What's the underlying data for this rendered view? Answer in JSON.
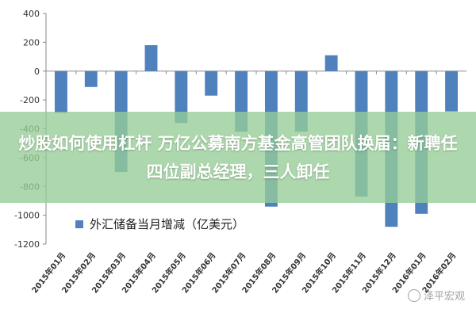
{
  "chart_data": {
    "type": "bar",
    "categories": [
      "2015年01月",
      "2015年02月",
      "2015年03月",
      "2015年04月",
      "2015年05月",
      "2015年06月",
      "2015年07月",
      "2015年08月",
      "2015年09月",
      "2015年10月",
      "2015年11月",
      "2015年12月",
      "2016年01月",
      "2016年02月"
    ],
    "series": [
      {
        "name": "外汇储备当月增减（亿美元）",
        "values": [
          -290,
          -110,
          -700,
          180,
          -360,
          -170,
          -420,
          -940,
          -420,
          110,
          -870,
          -1080,
          -990,
          -280
        ]
      }
    ],
    "yticks": [
      400,
      200,
      0,
      -200,
      -400,
      -600,
      -800,
      -1000,
      -1200
    ],
    "ylim": [
      -1200,
      400
    ],
    "bar_color": "#4f81bd",
    "grid": false,
    "legend_position": "bottom-left"
  },
  "banner": {
    "text": "炒股如何使用杠杆 万亿公募南方基金高管团队换届：新聘任四位副总经理，三人卸任"
  },
  "watermark": {
    "text": "泽平宏观",
    "icon": "wechat-icon"
  }
}
